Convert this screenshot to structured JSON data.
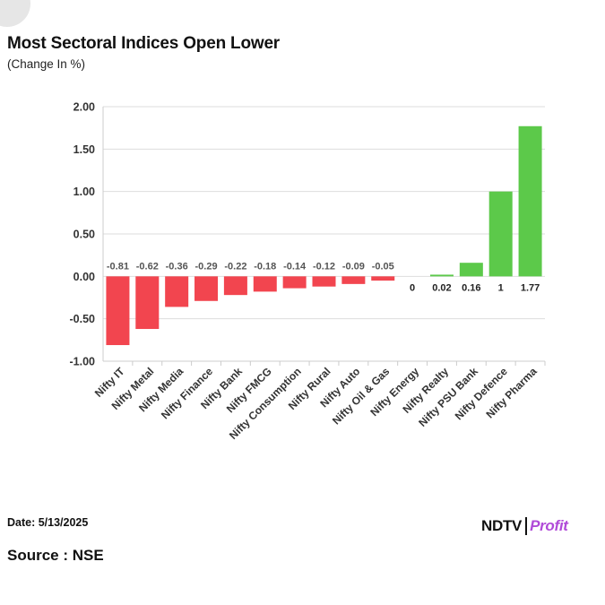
{
  "header": {
    "title": "Most Sectoral Indices Open Lower",
    "subtitle": "(Change In %)"
  },
  "footer": {
    "date": "Date: 5/13/2025",
    "source": "Source : NSE",
    "brand_primary": "NDTV",
    "brand_secondary": "Profit"
  },
  "colors": {
    "negative": "#f2454f",
    "positive": "#5cc94a",
    "grid": "#dddddd",
    "axis": "#cccccc",
    "label": "#555555"
  },
  "chart_data": {
    "type": "bar",
    "title": "Most Sectoral Indices Open Lower",
    "subtitle": "(Change In %)",
    "categories": [
      "Nifty IT",
      "Nifty Metal",
      "Nifty Media",
      "Nifty Finance",
      "Nifty Bank",
      "Nifty FMCG",
      "Nifty Consumption",
      "Nifty Rural",
      "Nifty Auto",
      "Nifty Oil & Gas",
      "Nifty Energy",
      "Nifty Realty",
      "Nifty PSU Bank",
      "Nifty Defence",
      "Nifty Pharma"
    ],
    "values": [
      -0.81,
      -0.62,
      -0.36,
      -0.29,
      -0.22,
      -0.18,
      -0.14,
      -0.12,
      -0.09,
      -0.05,
      0,
      0.02,
      0.16,
      1,
      1.77
    ],
    "value_labels": [
      "-0.81",
      "-0.62",
      "-0.36",
      "-0.29",
      "-0.22",
      "-0.18",
      "-0.14",
      "-0.12",
      "-0.09",
      "-0.05",
      "0",
      "0.02",
      "0.16",
      "1",
      "1.77"
    ],
    "ylim": [
      -1.0,
      2.0
    ],
    "yticks": [
      2.0,
      1.5,
      1.0,
      0.5,
      0.0,
      -0.5,
      -1.0
    ],
    "ytick_labels": [
      "2.00",
      "1.50",
      "1.00",
      "0.50",
      "0.00",
      "-0.50",
      "-1.00"
    ],
    "xlabel": "",
    "ylabel": "",
    "grid": true,
    "legend": "none"
  }
}
